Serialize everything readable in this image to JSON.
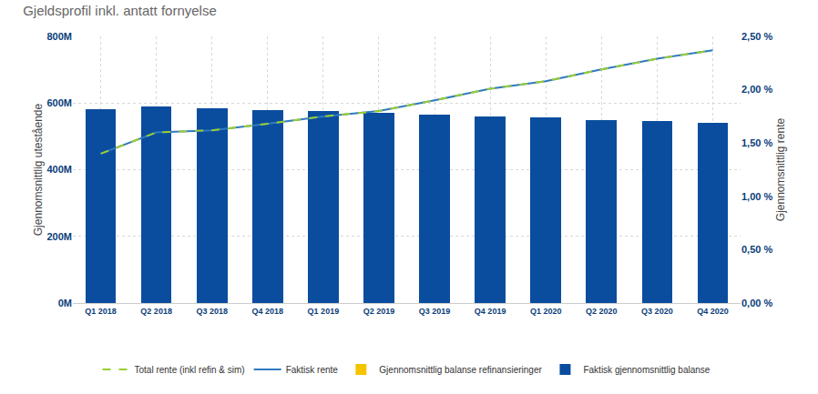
{
  "chart_data": {
    "type": "bar",
    "title": "Gjeldsprofil inkl. antatt fornyelse",
    "categories": [
      "Q1 2018",
      "Q2 2018",
      "Q3 2018",
      "Q4 2018",
      "Q1 2019",
      "Q2 2019",
      "Q3 2019",
      "Q4 2019",
      "Q1 2020",
      "Q2 2020",
      "Q3 2020",
      "Q4 2020"
    ],
    "y_label": "Gjennomsnittlig utestående",
    "y2_label": "Gjennomsnittlig rente",
    "ylim": [
      0,
      800
    ],
    "yticks": [
      {
        "value": 0,
        "label": "0M"
      },
      {
        "value": 200,
        "label": "200M"
      },
      {
        "value": 400,
        "label": "400M"
      },
      {
        "value": 600,
        "label": "600M"
      },
      {
        "value": 800,
        "label": "800M"
      }
    ],
    "y2lim": [
      0,
      2.5
    ],
    "y2ticks": [
      {
        "value": 0,
        "label": "0,00 %"
      },
      {
        "value": 0.5,
        "label": "0,50 %"
      },
      {
        "value": 1,
        "label": "1,00 %"
      },
      {
        "value": 1.5,
        "label": "1,50 %"
      },
      {
        "value": 2,
        "label": "2,00 %"
      },
      {
        "value": 2.5,
        "label": "2,50 %"
      }
    ],
    "grid": true,
    "stacked": true,
    "legend": "bottom",
    "series": [
      {
        "name": "Faktisk gjennomsnittlig balanse",
        "type": "bar",
        "color": "#0a4d9e",
        "values": [
          582,
          590,
          585,
          580,
          577,
          572,
          566,
          561,
          556,
          550,
          545,
          540
        ]
      },
      {
        "name": "Gjennomsnittlig balanse refinansieringer",
        "type": "bar",
        "color": "#f5c400",
        "values": [
          0,
          0,
          0,
          0,
          0,
          0,
          0,
          0,
          0,
          0,
          0,
          0
        ]
      },
      {
        "name": "Faktisk rente",
        "type": "line",
        "axis": "y2",
        "color": "#2f7ac0",
        "line_style": "solid",
        "values": [
          1.4,
          1.6,
          1.62,
          1.68,
          1.75,
          1.8,
          1.9,
          2.01,
          2.08,
          2.19,
          2.29,
          2.37
        ]
      },
      {
        "name": "Total rente (inkl refin & sim)",
        "type": "line",
        "axis": "y2",
        "color": "#9acd32",
        "line_style": "dash",
        "values": [
          1.4,
          1.6,
          1.62,
          1.68,
          1.75,
          1.8,
          1.9,
          2.01,
          2.08,
          2.19,
          2.29,
          2.37
        ]
      }
    ]
  }
}
